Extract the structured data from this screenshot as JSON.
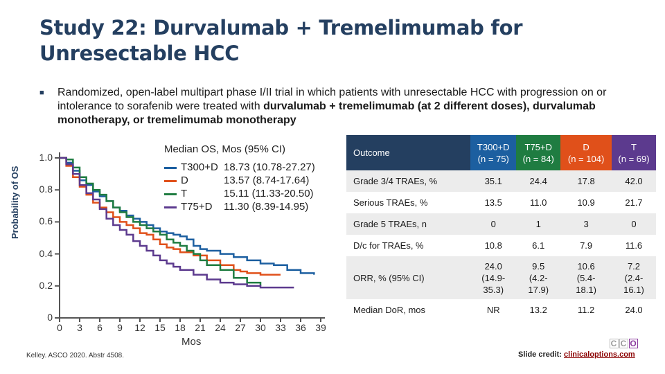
{
  "slide": {
    "title_line1": "Study 22: Durvalumab + Tremelimumab for",
    "title_line2": "Unresectable HCC",
    "bullet_part1": "Randomized, open-label multipart phase I/II trial in which patients with unresectable HCC with progression on or intolerance to sorafenib were treated with ",
    "bullet_bold1": "durvalumab + tremelimumab (at 2 different doses), durvalumab monotherapy, or tremelimumab monotherapy",
    "citation": "Kelley. ASCO 2020. Abstr 4508.",
    "credit_label": "Slide credit: ",
    "credit_link": "clinicaloptions.com",
    "logo": [
      "C",
      "C",
      "O"
    ]
  },
  "legend": {
    "title": "Median OS, Mos (95% CI)",
    "rows": [
      {
        "name": "T300+D",
        "value": "18.73 (10.78-27.27)",
        "color": "#1c5fa0"
      },
      {
        "name": "D",
        "value": "13.57 (8.74-17.64)",
        "color": "#e0501a"
      },
      {
        "name": "T",
        "value": "15.11 (11.33-20.50)",
        "color": "#1f7c41"
      },
      {
        "name": "T75+D",
        "value": "11.30 (8.39-14.95)",
        "color": "#5c3a8e"
      }
    ]
  },
  "chart_data": {
    "type": "line",
    "title": "",
    "xlabel": "Mos",
    "ylabel": "Probability of OS",
    "xlim": [
      0,
      39
    ],
    "ylim": [
      0,
      1.0
    ],
    "x_ticks": [
      "0",
      "3",
      "6",
      "9",
      "12",
      "15",
      "18",
      "21",
      "24",
      "27",
      "30",
      "33",
      "36",
      "39"
    ],
    "y_ticks": [
      "0",
      "0.2",
      "0.4",
      "0.6",
      "0.8",
      "1.0"
    ],
    "series": [
      {
        "name": "T300+D",
        "color": "#1c5fa0",
        "x": [
          0,
          1,
          2,
          3,
          4,
          5,
          6,
          7,
          8,
          9,
          10,
          11,
          12,
          13,
          14,
          15,
          16,
          17,
          18,
          19,
          20,
          21,
          22,
          24,
          26,
          28,
          30,
          32,
          34,
          36,
          38
        ],
        "y": [
          1.0,
          0.97,
          0.92,
          0.86,
          0.83,
          0.79,
          0.76,
          0.73,
          0.69,
          0.67,
          0.64,
          0.62,
          0.6,
          0.58,
          0.56,
          0.54,
          0.53,
          0.52,
          0.51,
          0.49,
          0.45,
          0.43,
          0.42,
          0.4,
          0.38,
          0.36,
          0.34,
          0.33,
          0.3,
          0.28,
          0.27
        ]
      },
      {
        "name": "D",
        "color": "#e0501a",
        "x": [
          0,
          1,
          2,
          3,
          4,
          5,
          6,
          7,
          8,
          9,
          10,
          11,
          12,
          13,
          14,
          15,
          16,
          17,
          18,
          20,
          22,
          24,
          26,
          27,
          28,
          30,
          33
        ],
        "y": [
          1.0,
          0.95,
          0.88,
          0.82,
          0.77,
          0.72,
          0.69,
          0.66,
          0.63,
          0.6,
          0.58,
          0.56,
          0.53,
          0.52,
          0.49,
          0.46,
          0.44,
          0.43,
          0.41,
          0.39,
          0.36,
          0.33,
          0.3,
          0.29,
          0.28,
          0.27,
          0.27
        ]
      },
      {
        "name": "T",
        "color": "#1f7c41",
        "x": [
          0,
          1,
          2,
          3,
          4,
          5,
          6,
          7,
          8,
          9,
          10,
          11,
          12,
          13,
          14,
          15,
          16,
          17,
          18,
          19,
          20,
          21,
          22,
          24,
          26,
          28,
          30
        ],
        "y": [
          1.0,
          0.99,
          0.94,
          0.88,
          0.84,
          0.8,
          0.77,
          0.73,
          0.69,
          0.66,
          0.63,
          0.6,
          0.58,
          0.56,
          0.54,
          0.52,
          0.49,
          0.47,
          0.45,
          0.42,
          0.4,
          0.36,
          0.33,
          0.3,
          0.25,
          0.22,
          0.2
        ]
      },
      {
        "name": "T75+D",
        "color": "#5c3a8e",
        "x": [
          0,
          1,
          2,
          3,
          4,
          5,
          6,
          7,
          8,
          9,
          10,
          11,
          12,
          13,
          14,
          15,
          16,
          17,
          18,
          20,
          22,
          24,
          26,
          28,
          30,
          32,
          35
        ],
        "y": [
          1.0,
          0.96,
          0.9,
          0.83,
          0.78,
          0.74,
          0.68,
          0.62,
          0.58,
          0.55,
          0.52,
          0.48,
          0.45,
          0.42,
          0.39,
          0.36,
          0.34,
          0.32,
          0.3,
          0.27,
          0.24,
          0.22,
          0.21,
          0.2,
          0.19,
          0.19,
          0.19
        ]
      }
    ]
  },
  "table": {
    "headers": [
      "Outcome",
      "T300+D\n(n = 75)",
      "T75+D\n(n = 84)",
      "D\n(n = 104)",
      "T\n(n = 69)"
    ],
    "header_colors": [
      "#243f60",
      "#1c5fa0",
      "#1f7c41",
      "#e0501a",
      "#5c3a8e"
    ],
    "rows": [
      {
        "label": "Grade 3/4 TRAEs, %",
        "values": [
          "35.1",
          "24.4",
          "17.8",
          "42.0"
        ]
      },
      {
        "label": "Serious TRAEs, %",
        "values": [
          "13.5",
          "11.0",
          "10.9",
          "21.7"
        ]
      },
      {
        "label": "Grade 5 TRAEs, n",
        "values": [
          "0",
          "1",
          "3",
          "0"
        ]
      },
      {
        "label": "D/c for TRAEs, %",
        "values": [
          "10.8",
          "6.1",
          "7.9",
          "11.6"
        ]
      },
      {
        "label": "ORR, % (95% CI)",
        "values": [
          "24.0\n(14.9-\n35.3)",
          "9.5\n(4.2-\n17.9)",
          "10.6\n(5.4-\n18.1)",
          "7.2\n(2.4-\n16.1)"
        ]
      },
      {
        "label": "Median DoR, mos",
        "values": [
          "NR",
          "13.2",
          "11.2",
          "24.0"
        ]
      }
    ]
  }
}
